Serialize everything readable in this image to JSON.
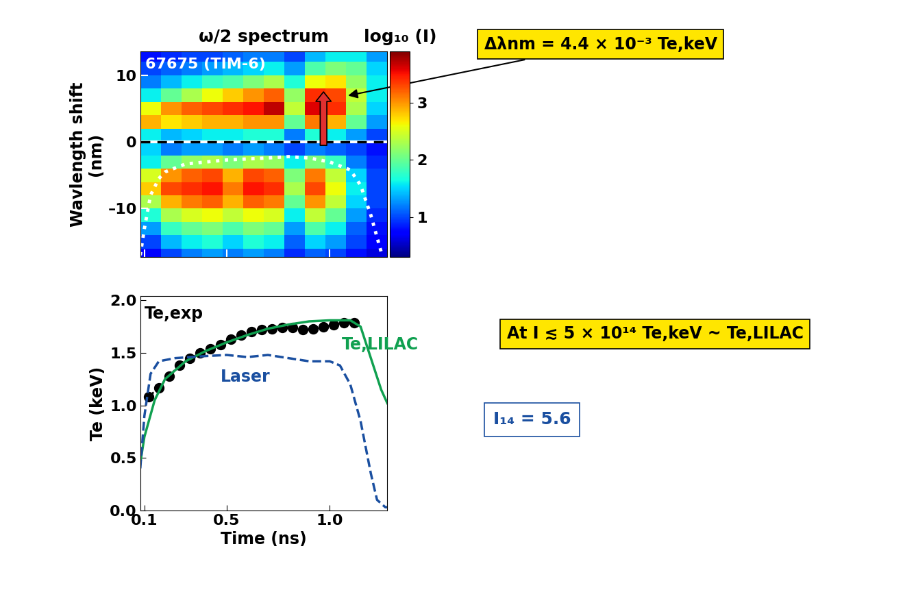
{
  "chart_data": [
    {
      "type": "heatmap",
      "title": "ω/2 spectrum",
      "ylabel": "Wavlength shift\n(nm)",
      "text": "67675 (TIM-6)",
      "xlim": [
        0.08,
        1.28
      ],
      "ylim": [
        -17.3,
        13.6
      ],
      "xticks": [
        0.1,
        0.5,
        {
          "value": 1.0,
          "label": "1.0"
        }
      ],
      "yticks": [
        {
          "value": -10,
          "label": "–10"
        },
        0,
        10
      ],
      "tick_labels": "y",
      "x_edges": [
        0.08,
        0.18,
        0.28,
        0.38,
        0.48,
        0.58,
        0.68,
        0.78,
        0.88,
        0.98,
        1.08,
        1.18,
        1.28
      ],
      "y_edges": [
        -18,
        -16,
        -14,
        -12,
        -10,
        -8,
        -6,
        -4,
        -2,
        0,
        2,
        4,
        6,
        8,
        10,
        12,
        14
      ],
      "cells": [
        [
          0.7,
          1.0,
          1.2,
          1.3,
          1.2,
          1.3,
          1.2,
          0.9,
          1.1,
          1.0,
          0.8,
          0.6
        ],
        [
          1.0,
          1.4,
          1.6,
          1.7,
          1.5,
          1.7,
          1.6,
          1.1,
          1.5,
          1.3,
          1.0,
          0.7
        ],
        [
          1.3,
          1.8,
          2.0,
          2.1,
          1.9,
          2.1,
          2.0,
          1.3,
          1.9,
          1.6,
          1.1,
          0.8
        ],
        [
          1.7,
          2.3,
          2.5,
          2.6,
          2.4,
          2.6,
          2.5,
          1.6,
          2.4,
          2.0,
          1.3,
          0.9
        ],
        [
          2.3,
          2.9,
          3.1,
          3.2,
          2.9,
          3.2,
          3.1,
          2.0,
          3.0,
          2.4,
          1.5,
          1.0
        ],
        [
          2.8,
          3.3,
          3.4,
          3.5,
          3.1,
          3.5,
          3.4,
          2.3,
          3.3,
          2.6,
          1.6,
          1.0
        ],
        [
          2.5,
          3.0,
          3.2,
          3.3,
          2.9,
          3.3,
          3.2,
          2.1,
          3.1,
          2.4,
          1.5,
          1.0
        ],
        [
          1.6,
          2.0,
          2.2,
          2.3,
          2.1,
          2.3,
          2.2,
          1.6,
          2.1,
          1.8,
          1.2,
          0.9
        ],
        [
          1.5,
          1.2,
          1.3,
          1.3,
          1.2,
          1.3,
          1.2,
          1.0,
          1.2,
          1.1,
          1.0,
          0.8
        ],
        [
          1.6,
          1.4,
          1.5,
          1.6,
          1.6,
          1.7,
          1.7,
          1.2,
          1.7,
          1.6,
          1.3,
          1.0
        ],
        [
          2.9,
          2.7,
          2.8,
          2.9,
          2.9,
          3.0,
          3.0,
          2.0,
          3.1,
          2.9,
          2.0,
          1.3
        ],
        [
          2.6,
          3.0,
          3.2,
          3.3,
          3.4,
          3.5,
          3.7,
          2.4,
          3.6,
          3.4,
          2.3,
          1.5
        ],
        [
          1.6,
          2.0,
          2.3,
          2.6,
          2.8,
          3.0,
          3.2,
          2.2,
          3.4,
          3.3,
          2.4,
          1.6
        ],
        [
          1.2,
          1.4,
          1.6,
          1.8,
          1.9,
          2.1,
          2.3,
          1.7,
          2.6,
          2.7,
          2.2,
          1.6
        ],
        [
          1.0,
          1.1,
          1.2,
          1.3,
          1.4,
          1.5,
          1.6,
          1.3,
          1.9,
          2.1,
          2.0,
          1.5
        ],
        [
          0.8,
          0.9,
          1.0,
          1.0,
          1.1,
          1.2,
          1.2,
          1.0,
          1.4,
          1.6,
          1.6,
          1.3
        ]
      ],
      "colorbar": {
        "title": "log₁₀ (I)",
        "range": [
          0.3,
          3.9
        ],
        "ticks": [
          1,
          2,
          3
        ]
      },
      "hlines": [
        0
      ],
      "overlay": {
        "x": [
          0.08,
          0.1,
          0.13,
          0.17,
          0.2,
          0.3,
          0.5,
          0.7,
          0.8,
          0.9,
          1.0,
          1.1,
          1.15,
          1.2,
          1.25
        ],
        "y": [
          -17,
          -13,
          -8,
          -5.5,
          -4.5,
          -3.3,
          -2.7,
          -2.4,
          -2.2,
          -2.4,
          -3.0,
          -4.2,
          -6.5,
          -11,
          -16.5
        ],
        "color": "white",
        "line_style": "dotted"
      },
      "arrow": {
        "x": 0.97,
        "y_from": -0.8,
        "y_to": 7.8,
        "color": "#e03030"
      },
      "annotations": [
        {
          "text": "Δλnm = 4.4 × 10⁻³ Te,keV",
          "x": 1.08,
          "y": 6.9
        }
      ]
    },
    {
      "type": "line",
      "xlabel": "Time (ns)",
      "ylabel": "Te (keV)",
      "xlim": [
        0.08,
        1.28
      ],
      "ylim": [
        0,
        2.04
      ],
      "xticks": [
        0.1,
        0.5,
        {
          "value": 1.0,
          "label": "1.0"
        }
      ],
      "yticks": [
        {
          "value": 0.0,
          "label": "0.0"
        },
        {
          "value": 0.5,
          "label": "0.5"
        },
        {
          "value": 1.0,
          "label": "1.0"
        },
        {
          "value": 1.5,
          "label": "1.5"
        },
        {
          "value": 2.0,
          "label": "2.0"
        }
      ],
      "series": [
        {
          "name": "Te,exp",
          "type": "scatter",
          "color": "#000000",
          "marker": "o",
          "line_style": "dotted",
          "x": [
            0.12,
            0.17,
            0.22,
            0.27,
            0.32,
            0.37,
            0.42,
            0.47,
            0.52,
            0.57,
            0.62,
            0.67,
            0.72,
            0.77,
            0.82,
            0.87,
            0.92,
            0.97,
            1.02,
            1.07,
            1.12
          ],
          "values": [
            1.08,
            1.17,
            1.28,
            1.38,
            1.45,
            1.5,
            1.54,
            1.58,
            1.63,
            1.67,
            1.7,
            1.72,
            1.73,
            1.74,
            1.74,
            1.72,
            1.73,
            1.75,
            1.77,
            1.79,
            1.79
          ]
        },
        {
          "name": "Te,LILAC",
          "type": "line",
          "color": "#10a050",
          "line_style": "solid",
          "x": [
            0.08,
            0.1,
            0.15,
            0.2,
            0.3,
            0.4,
            0.5,
            0.6,
            0.7,
            0.8,
            0.9,
            1.0,
            1.1,
            1.15,
            1.2,
            1.25,
            1.28
          ],
          "values": [
            0.45,
            0.7,
            1.05,
            1.25,
            1.42,
            1.52,
            1.6,
            1.67,
            1.73,
            1.77,
            1.8,
            1.81,
            1.81,
            1.75,
            1.45,
            1.15,
            1.02
          ]
        },
        {
          "name": "Laser",
          "type": "line",
          "color": "#1a4fa0",
          "line_style": "dashed",
          "x": [
            0.08,
            0.1,
            0.13,
            0.17,
            0.25,
            0.4,
            0.5,
            0.6,
            0.7,
            0.8,
            0.9,
            1.0,
            1.05,
            1.1,
            1.15,
            1.2,
            1.23,
            1.27,
            1.28
          ],
          "values": [
            0.4,
            0.9,
            1.3,
            1.42,
            1.45,
            1.47,
            1.48,
            1.46,
            1.48,
            1.45,
            1.42,
            1.42,
            1.38,
            1.2,
            0.85,
            0.35,
            0.1,
            0.03,
            0.03
          ]
        }
      ],
      "annotations": [
        {
          "text": "At I ≲ 5 × 10¹⁴ Te,keV ~ Te,LILAC"
        },
        {
          "text": "I₁₄ = 5.6"
        }
      ]
    }
  ]
}
